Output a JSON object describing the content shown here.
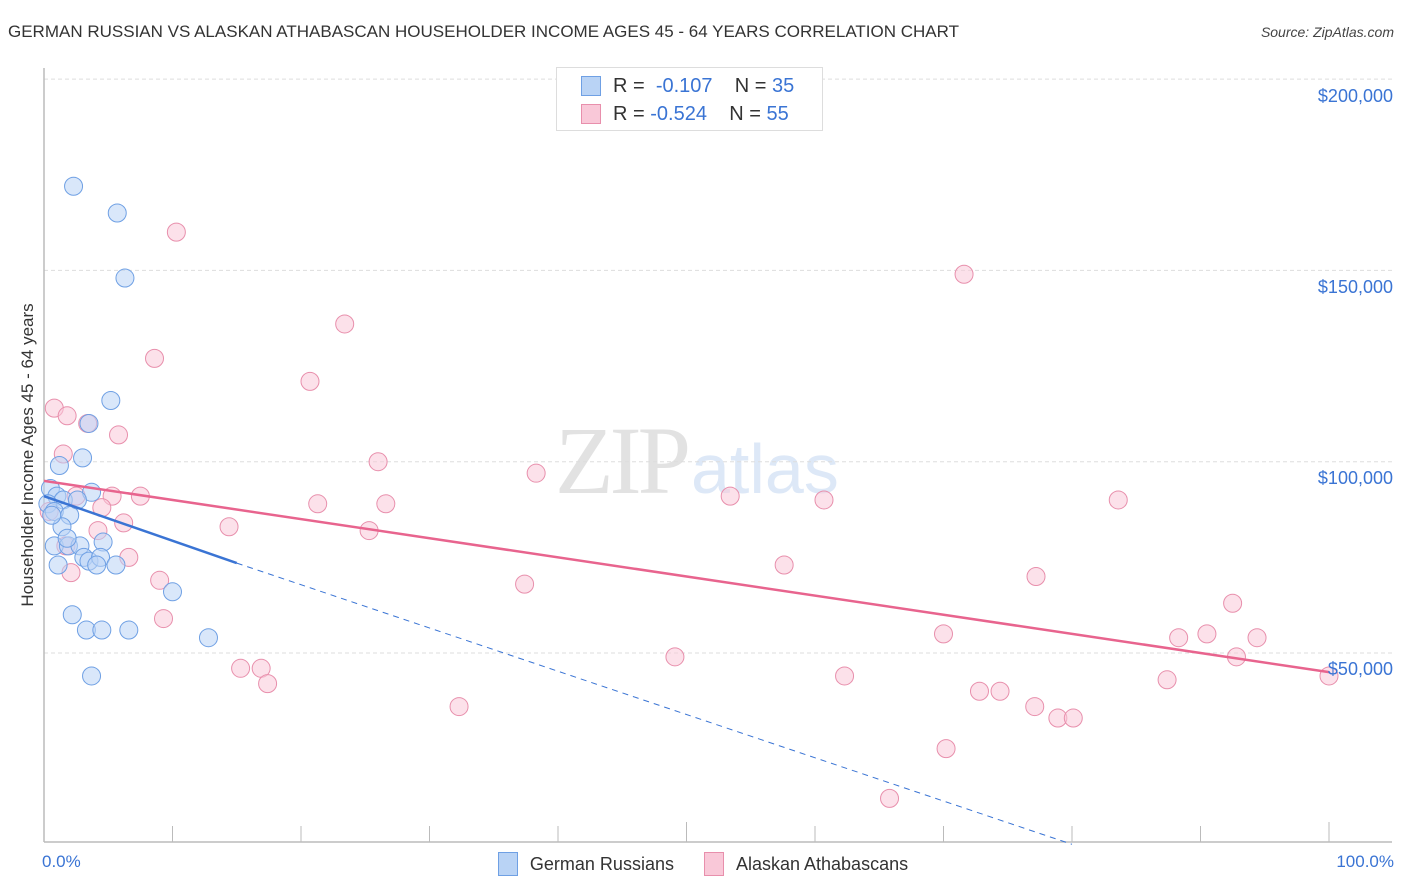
{
  "header": {
    "title": "GERMAN RUSSIAN VS ALASKAN ATHABASCAN HOUSEHOLDER INCOME AGES 45 - 64 YEARS CORRELATION CHART",
    "source": "Source: ZipAtlas.com"
  },
  "legend": {
    "rows": [
      {
        "r_label": "R =",
        "r_value": "-0.107",
        "n_label": "N =",
        "n_value": "35",
        "color": "#b9d3f5",
        "border": "#6fa0e4"
      },
      {
        "r_label": "R =",
        "r_value": "-0.524",
        "n_label": "N =",
        "n_value": "55",
        "color": "#f9c8d8",
        "border": "#e88fac"
      }
    ],
    "bottom": [
      {
        "label": "German Russians"
      },
      {
        "label": "Alaskan Athabascans"
      }
    ]
  },
  "watermark": {
    "zip": "ZIP",
    "atlas": "atlas"
  },
  "axes": {
    "ylabel": "Householder Income Ages 45 - 64 years",
    "yticks": [
      "$200,000",
      "$150,000",
      "$100,000",
      "$50,000"
    ],
    "xticks": [
      "0.0%",
      "100.0%"
    ]
  },
  "colors": {
    "blue": "#3a74d4",
    "blue_fill": "#b9d3f5",
    "pink": "#e8648e",
    "pink_fill": "#f9c8d8",
    "grid": "#dddddd"
  },
  "chart_data": {
    "type": "scatter",
    "title": "GERMAN RUSSIAN VS ALASKAN ATHABASCAN HOUSEHOLDER INCOME AGES 45 - 64 YEARS CORRELATION CHART",
    "xlabel": "",
    "ylabel": "Householder Income Ages 45 - 64 years",
    "xlim": [
      0,
      100
    ],
    "ylim": [
      0,
      205000
    ],
    "grid": true,
    "legend_position": "top-center",
    "x_tick_labels": [
      "0.0%",
      "100.0%"
    ],
    "y_tick_labels": [
      "$50,000",
      "$100,000",
      "$150,000",
      "$200,000"
    ],
    "series": [
      {
        "name": "German Russians",
        "R": -0.107,
        "N": 35,
        "points": [
          [
            2.3,
            172000
          ],
          [
            5.7,
            165000
          ],
          [
            6.3,
            148000
          ],
          [
            5.2,
            116000
          ],
          [
            3.5,
            110000
          ],
          [
            1.2,
            99000
          ],
          [
            3.0,
            101000
          ],
          [
            0.5,
            93000
          ],
          [
            1.0,
            91000
          ],
          [
            1.5,
            90000
          ],
          [
            3.7,
            92000
          ],
          [
            0.3,
            89000
          ],
          [
            0.8,
            87000
          ],
          [
            2.0,
            86000
          ],
          [
            1.4,
            83000
          ],
          [
            0.6,
            86000
          ],
          [
            2.6,
            90000
          ],
          [
            0.8,
            78000
          ],
          [
            1.9,
            78000
          ],
          [
            2.8,
            78000
          ],
          [
            4.6,
            79000
          ],
          [
            1.8,
            80000
          ],
          [
            3.1,
            75000
          ],
          [
            3.5,
            74000
          ],
          [
            4.4,
            75000
          ],
          [
            5.6,
            73000
          ],
          [
            1.1,
            73000
          ],
          [
            4.1,
            73000
          ],
          [
            10.0,
            66000
          ],
          [
            2.2,
            60000
          ],
          [
            3.3,
            56000
          ],
          [
            4.5,
            56000
          ],
          [
            6.6,
            56000
          ],
          [
            12.8,
            54000
          ],
          [
            3.7,
            44000
          ]
        ],
        "trend": {
          "x0": 0,
          "y0": 91000,
          "x1": 15,
          "y1": 73500,
          "dashed_extension_to": [
            80,
            0
          ]
        }
      },
      {
        "name": "Alaskan Athabascans",
        "R": -0.524,
        "N": 55,
        "points": [
          [
            10.3,
            160000
          ],
          [
            71.6,
            149000
          ],
          [
            23.4,
            136000
          ],
          [
            8.6,
            127000
          ],
          [
            20.7,
            121000
          ],
          [
            0.8,
            114000
          ],
          [
            1.8,
            112000
          ],
          [
            3.4,
            110000
          ],
          [
            5.8,
            107000
          ],
          [
            1.5,
            102000
          ],
          [
            26.0,
            100000
          ],
          [
            38.3,
            97000
          ],
          [
            2.5,
            91000
          ],
          [
            5.3,
            91000
          ],
          [
            7.5,
            91000
          ],
          [
            53.4,
            91000
          ],
          [
            60.7,
            90000
          ],
          [
            83.6,
            90000
          ],
          [
            21.3,
            89000
          ],
          [
            26.6,
            89000
          ],
          [
            4.5,
            88000
          ],
          [
            0.4,
            87000
          ],
          [
            6.2,
            84000
          ],
          [
            14.4,
            83000
          ],
          [
            25.3,
            82000
          ],
          [
            4.2,
            82000
          ],
          [
            1.7,
            78000
          ],
          [
            6.6,
            75000
          ],
          [
            57.6,
            73000
          ],
          [
            2.1,
            71000
          ],
          [
            77.2,
            70000
          ],
          [
            9.0,
            69000
          ],
          [
            37.4,
            68000
          ],
          [
            92.5,
            63000
          ],
          [
            9.3,
            59000
          ],
          [
            70.0,
            55000
          ],
          [
            88.3,
            54000
          ],
          [
            90.5,
            55000
          ],
          [
            94.4,
            54000
          ],
          [
            92.8,
            49000
          ],
          [
            49.1,
            49000
          ],
          [
            15.3,
            46000
          ],
          [
            16.9,
            46000
          ],
          [
            62.3,
            44000
          ],
          [
            87.4,
            43000
          ],
          [
            17.4,
            42000
          ],
          [
            100.0,
            44000
          ],
          [
            72.8,
            40000
          ],
          [
            74.4,
            40000
          ],
          [
            77.1,
            36000
          ],
          [
            32.3,
            36000
          ],
          [
            78.9,
            33000
          ],
          [
            80.1,
            33000
          ],
          [
            70.2,
            25000
          ],
          [
            65.8,
            12000
          ]
        ],
        "trend": {
          "x0": 0,
          "y0": 95000,
          "x1": 100,
          "y1": 45000
        }
      }
    ]
  }
}
